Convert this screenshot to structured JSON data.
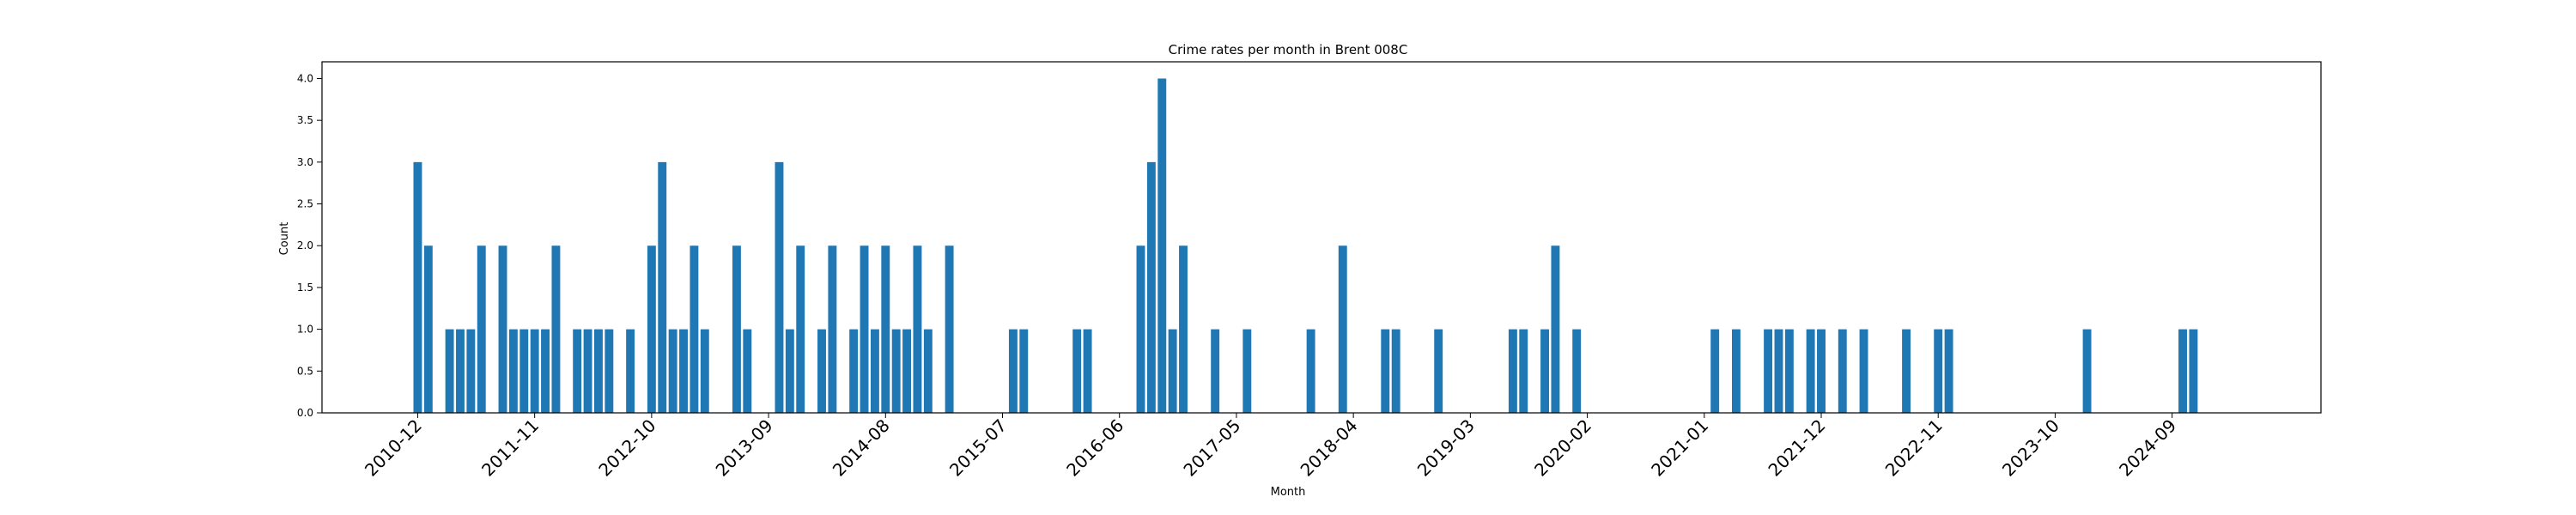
{
  "chart_data": {
    "type": "bar",
    "title": "Crime rates per month in Brent 008C",
    "xlabel": "Month",
    "ylabel": "Count",
    "ylim": [
      0,
      4.2
    ],
    "y_ticks": [
      "0.0",
      "0.5",
      "1.0",
      "1.5",
      "2.0",
      "2.5",
      "3.0",
      "3.5",
      "4.0"
    ],
    "x_tick_labels": [
      "2010-12",
      "2011-11",
      "2012-10",
      "2013-09",
      "2014-08",
      "2015-07",
      "2016-06",
      "2017-05",
      "2018-04",
      "2019-03",
      "2020-02",
      "2021-01",
      "2021-12",
      "2022-11",
      "2023-10",
      "2024-09"
    ],
    "x_range": [
      "2010-03",
      "2025-11"
    ],
    "grid": false,
    "bar_color": "#1f77b4",
    "categories": [
      "2010-12",
      "2011-01",
      "2011-03",
      "2011-04",
      "2011-05",
      "2011-06",
      "2011-08",
      "2011-09",
      "2011-10",
      "2011-11",
      "2011-12",
      "2012-01",
      "2012-03",
      "2012-04",
      "2012-05",
      "2012-06",
      "2012-08",
      "2012-10",
      "2012-11",
      "2012-12",
      "2013-01",
      "2013-02",
      "2013-03",
      "2013-06",
      "2013-07",
      "2013-10",
      "2013-11",
      "2013-12",
      "2014-02",
      "2014-03",
      "2014-05",
      "2014-06",
      "2014-07",
      "2014-08",
      "2014-09",
      "2014-10",
      "2014-11",
      "2014-12",
      "2015-02",
      "2015-08",
      "2015-09",
      "2016-02",
      "2016-03",
      "2016-08",
      "2016-09",
      "2016-10",
      "2016-11",
      "2016-12",
      "2017-03",
      "2017-06",
      "2017-12",
      "2018-03",
      "2018-07",
      "2018-08",
      "2018-12",
      "2019-07",
      "2019-08",
      "2019-10",
      "2019-11",
      "2020-01",
      "2021-02",
      "2021-04",
      "2021-07",
      "2021-08",
      "2021-09",
      "2021-11",
      "2021-12",
      "2022-02",
      "2022-04",
      "2022-08",
      "2022-11",
      "2022-12",
      "2024-01",
      "2024-10",
      "2024-11"
    ],
    "values": [
      3,
      2,
      1,
      1,
      1,
      2,
      2,
      1,
      1,
      1,
      1,
      2,
      1,
      1,
      1,
      1,
      1,
      2,
      3,
      1,
      1,
      2,
      1,
      2,
      1,
      3,
      1,
      2,
      1,
      2,
      1,
      2,
      1,
      2,
      1,
      1,
      2,
      1,
      2,
      1,
      1,
      1,
      1,
      2,
      3,
      4,
      1,
      2,
      1,
      1,
      1,
      2,
      1,
      1,
      1,
      1,
      1,
      1,
      2,
      1,
      1,
      1,
      1,
      1,
      1,
      1,
      1,
      1,
      1,
      1,
      1,
      1,
      1,
      1,
      1
    ]
  }
}
